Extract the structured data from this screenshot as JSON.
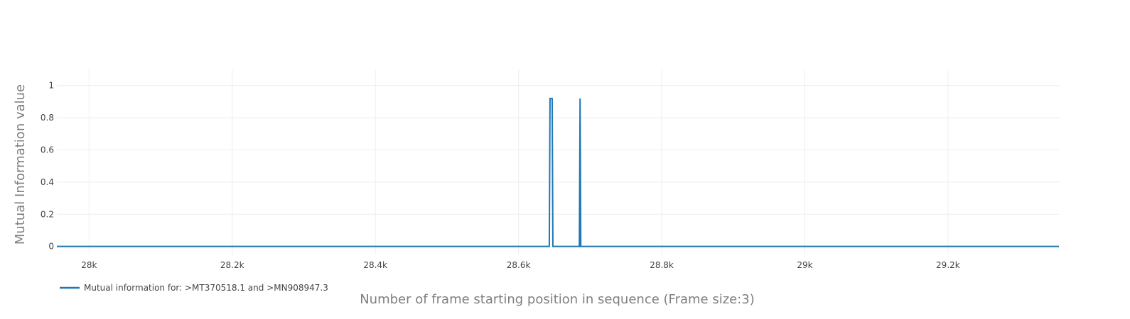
{
  "chart_data": {
    "type": "line",
    "title": "",
    "xlabel": "Number of frame starting position in sequence (Frame size:3)",
    "ylabel": "Mutual Information value",
    "xlim": [
      27955,
      29355
    ],
    "ylim": [
      -0.05,
      1.1
    ],
    "x_ticks": [
      28000,
      28200,
      28400,
      28600,
      28800,
      29000,
      29200
    ],
    "x_tick_labels": [
      "28k",
      "28.2k",
      "28.4k",
      "28.6k",
      "28.8k",
      "29k",
      "29.2k"
    ],
    "y_ticks": [
      0,
      0.2,
      0.4,
      0.6,
      0.8,
      1
    ],
    "y_tick_labels": [
      "0",
      "0.2",
      "0.4",
      "0.6",
      "0.8",
      "1"
    ],
    "grid": true,
    "legend_position": "bottom-left",
    "series": [
      {
        "name": "Mutual information for: >MT370518.1 and >MN908947.3",
        "color": "#1f77b4",
        "x": [
          27955,
          28643,
          28644,
          28645,
          28646,
          28647,
          28648,
          28685,
          28686,
          28687,
          29355
        ],
        "y": [
          0,
          0,
          0.92,
          0.92,
          0.92,
          0.92,
          0,
          0,
          0.92,
          0,
          0
        ]
      }
    ]
  }
}
